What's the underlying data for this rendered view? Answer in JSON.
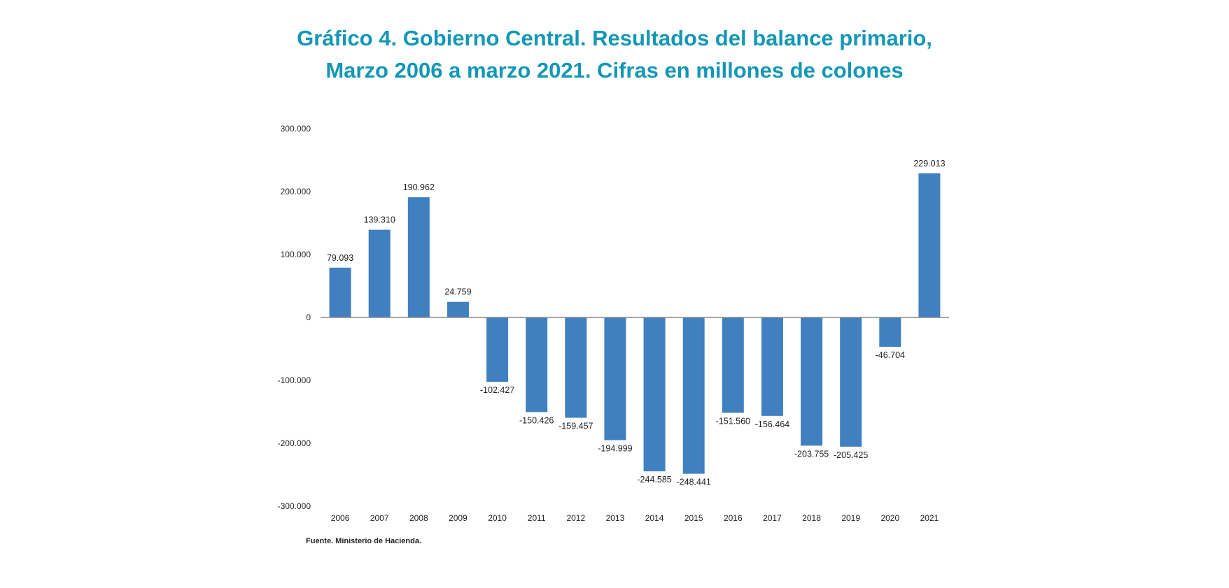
{
  "title_lines": [
    "Gráfico 4. Gobierno Central. Resultados del balance primario,",
    "Marzo 2006 a marzo 2021. Cifras en millones de colones"
  ],
  "source": "Fuente. Ministerio de Hacienda.",
  "colors": {
    "title": "#1397b5",
    "bar": "#4080c0"
  },
  "chart_data": {
    "type": "bar",
    "title": "Gráfico 4. Gobierno Central. Resultados del balance primario, Marzo 2006 a marzo 2021. Cifras en millones de colones",
    "categories": [
      "2006",
      "2007",
      "2008",
      "2009",
      "2010",
      "2011",
      "2012",
      "2013",
      "2014",
      "2015",
      "2016",
      "2017",
      "2018",
      "2019",
      "2020",
      "2021"
    ],
    "values": [
      79093,
      139310,
      190962,
      24759,
      -102427,
      -150426,
      -159457,
      -194999,
      -244585,
      -248441,
      -151560,
      -156464,
      -203755,
      -205425,
      -46704,
      229013
    ],
    "data_labels": [
      "79.093",
      "139.310",
      "190.962",
      "24.759",
      "-102.427",
      "-150.426",
      "-159.457",
      "-194.999",
      "-244.585",
      "-248.441",
      "-151.560",
      "-156.464",
      "-203.755",
      "-205.425",
      "-46.704",
      "229.013"
    ],
    "yticks": [
      300000,
      200000,
      100000,
      0,
      -100000,
      -200000,
      -300000
    ],
    "ytick_labels": [
      "300.000",
      "200.000",
      "100.000",
      "0",
      "-100.000",
      "-200.000",
      "-300.000"
    ],
    "ylim": [
      -300000,
      300000
    ],
    "xlabel": "",
    "ylabel": "",
    "grid": false,
    "legend": "none"
  }
}
